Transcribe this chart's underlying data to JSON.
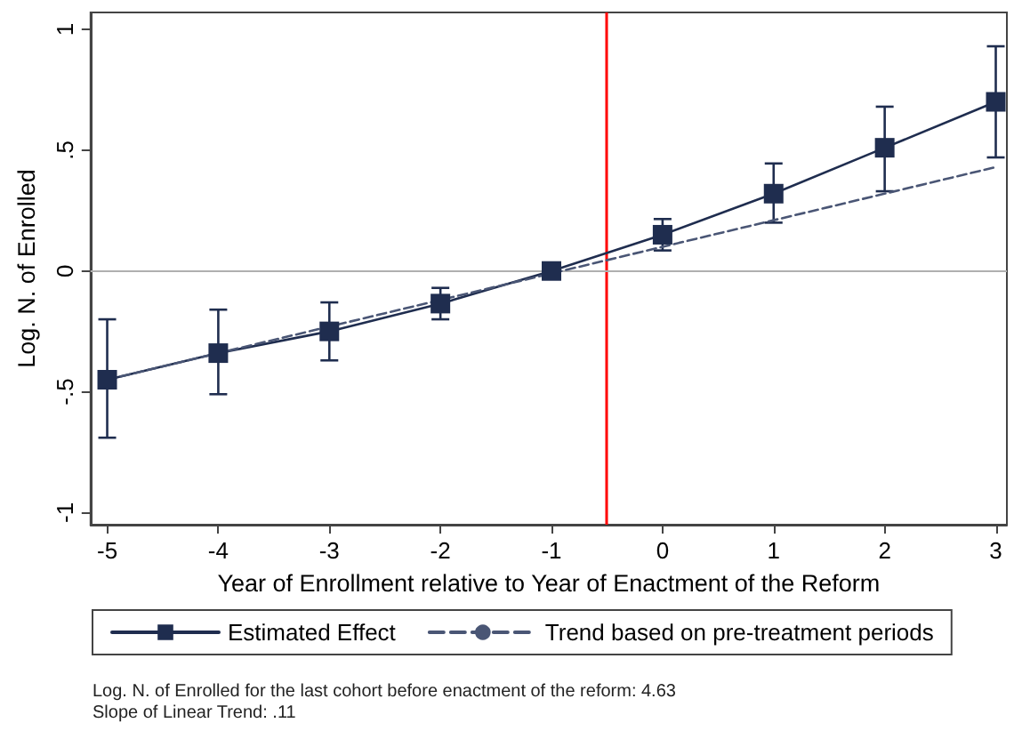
{
  "chart_data": {
    "type": "line",
    "xlabel": "Year of Enrollment relative to Year of Enactment of the Reform",
    "ylabel": "Log. N. of Enrolled",
    "x": [
      -5,
      -4,
      -3,
      -2,
      -1,
      0,
      1,
      2,
      3
    ],
    "series": [
      {
        "name": "Estimated Effect",
        "color": "#1f2d4f",
        "values": [
          -0.45,
          -0.34,
          -0.25,
          -0.135,
          0,
          0.15,
          0.32,
          0.51,
          0.7
        ],
        "errors": [
          [
            -0.69,
            -0.2
          ],
          [
            -0.51,
            -0.16
          ],
          [
            -0.37,
            -0.13
          ],
          [
            -0.2,
            -0.07
          ],
          null,
          [
            0.085,
            0.215
          ],
          [
            0.2,
            0.445
          ],
          [
            0.33,
            0.68
          ],
          [
            0.47,
            0.93
          ]
        ],
        "marker": "square",
        "line_style": "solid"
      },
      {
        "name": "Trend based on pre-treatment periods",
        "color": "#4a5675",
        "x": [
          -5,
          3
        ],
        "values": [
          -0.45,
          0.43
        ],
        "marker": "none",
        "line_style": "dashed"
      }
    ],
    "xlim": [
      -5.15,
      3.1
    ],
    "xticks": [
      -5,
      -4,
      -3,
      -2,
      -1,
      0,
      1,
      2,
      3
    ],
    "ylim": [
      -1.05,
      1.07
    ],
    "yticks": [
      {
        "value": -1,
        "label": "-1"
      },
      {
        "value": -0.5,
        "label": "-.5"
      },
      {
        "value": 0,
        "label": "0"
      },
      {
        "value": 0.5,
        "label": ".5"
      },
      {
        "value": 1,
        "label": "1"
      }
    ],
    "ref_lines": [
      {
        "axis": "x",
        "value": -0.5,
        "color": "#ff0000",
        "line_style": "solid"
      },
      {
        "axis": "y",
        "value": 0,
        "color": "#b0b0b0",
        "line_style": "solid"
      }
    ],
    "grid": false,
    "legend": "bottom",
    "annotations": [
      "Log. N. of Enrolled for the last cohort before enactment of the reform: 4.63",
      "Slope of Linear Trend: .11"
    ]
  }
}
